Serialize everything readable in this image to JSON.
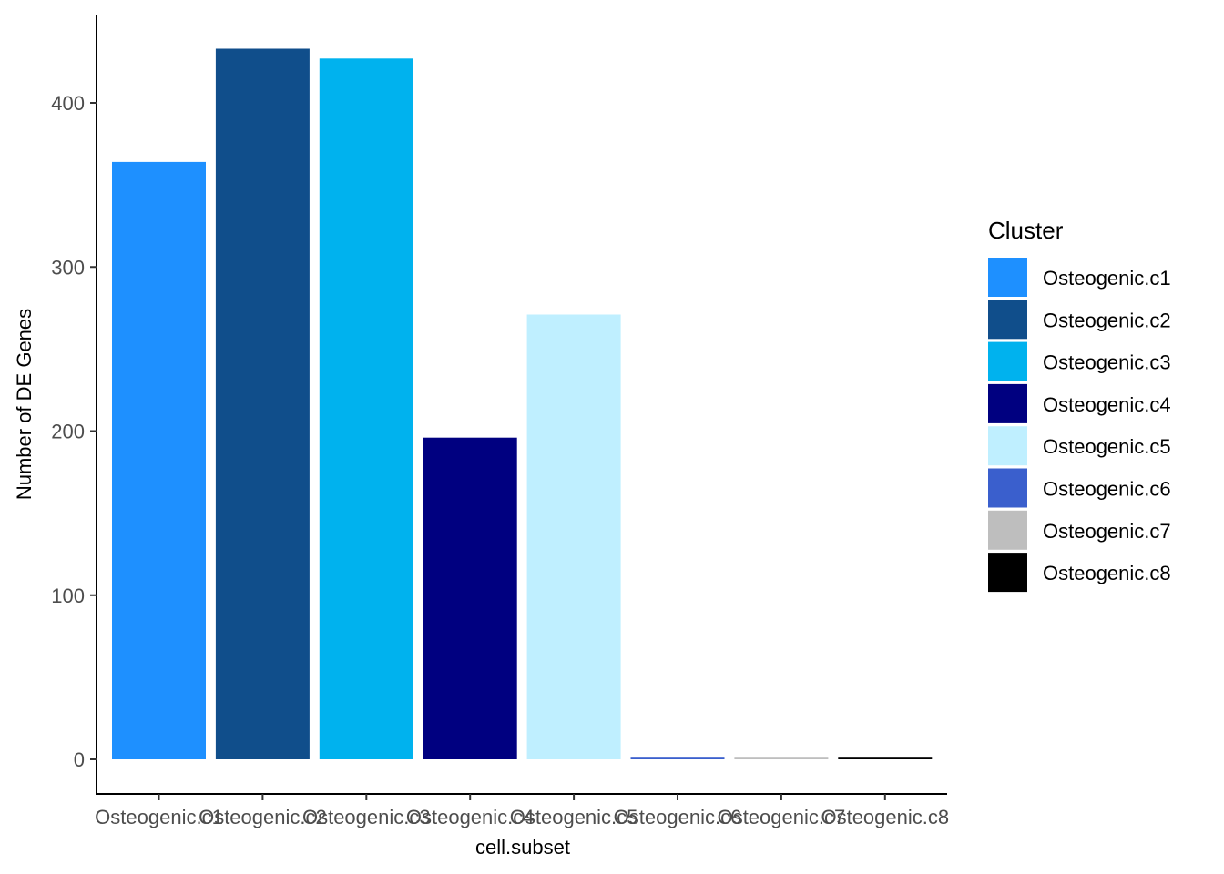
{
  "chart_data": {
    "type": "bar",
    "xlabel": "cell.subset",
    "ylabel": "Number of DE Genes",
    "ylim": [
      0,
      450
    ],
    "yticks": [
      0,
      100,
      200,
      300,
      400
    ],
    "categories": [
      "Osteogenic.c1",
      "Osteogenic.c2",
      "Osteogenic.c3",
      "Osteogenic.c4",
      "Osteogenic.c5",
      "Osteogenic.c6",
      "Osteogenic.c7",
      "Osteogenic.c8"
    ],
    "values": [
      364,
      433,
      427,
      196,
      271,
      1,
      1,
      1
    ],
    "colors": [
      "#1E90FF",
      "#104E8B",
      "#00B2EE",
      "#000080",
      "#BFEFFF",
      "#3A5FCD",
      "#BEBEBE",
      "#000000"
    ],
    "legend": {
      "title": "Cluster",
      "position": "right",
      "entries": [
        "Osteogenic.c1",
        "Osteogenic.c2",
        "Osteogenic.c3",
        "Osteogenic.c4",
        "Osteogenic.c5",
        "Osteogenic.c6",
        "Osteogenic.c7",
        "Osteogenic.c8"
      ]
    },
    "grid": false
  }
}
